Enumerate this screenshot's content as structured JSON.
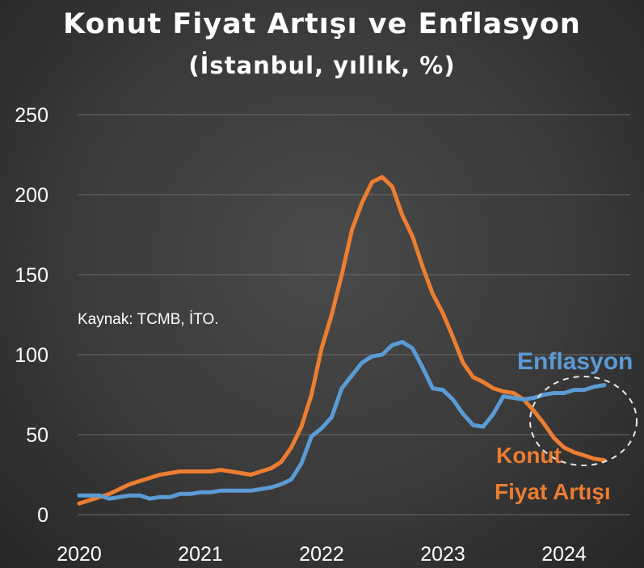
{
  "title": "Konut Fiyat Artışı ve Enflasyon",
  "subtitle": "(İstanbul, yıllık, %)",
  "colors": {
    "inflation": "#5b9bd5",
    "housing": "#ed7d31",
    "grid": "#6a6a6a",
    "text": "#ffffff"
  },
  "chart_data": {
    "type": "line",
    "title": "Konut Fiyat Artışı ve Enflasyon",
    "subtitle": "(İstanbul, yıllık, %)",
    "xlabel": "",
    "ylabel": "",
    "ylim": [
      0,
      250
    ],
    "yticks": [
      0,
      50,
      100,
      150,
      200,
      250
    ],
    "xticks": [
      "2020",
      "2021",
      "2022",
      "2023",
      "2024"
    ],
    "xlim": [
      2020,
      2024.5
    ],
    "grid": true,
    "legend": "none",
    "source": "Kaynak: TCMB, İTO.",
    "annotation": "dashed circle around 2024 crossing",
    "series": [
      {
        "name": "Enflasyon",
        "color": "#5b9bd5",
        "x": [
          2020.0,
          2020.083,
          2020.167,
          2020.25,
          2020.333,
          2020.417,
          2020.5,
          2020.583,
          2020.667,
          2020.75,
          2020.833,
          2020.917,
          2021.0,
          2021.083,
          2021.167,
          2021.25,
          2021.333,
          2021.417,
          2021.5,
          2021.583,
          2021.667,
          2021.75,
          2021.833,
          2021.917,
          2022.0,
          2022.083,
          2022.167,
          2022.25,
          2022.333,
          2022.417,
          2022.5,
          2022.583,
          2022.667,
          2022.75,
          2022.833,
          2022.917,
          2023.0,
          2023.083,
          2023.167,
          2023.25,
          2023.333,
          2023.417,
          2023.5,
          2023.583,
          2023.667,
          2023.75,
          2023.833,
          2023.917,
          2024.0,
          2024.083,
          2024.167,
          2024.25,
          2024.333
        ],
        "values": [
          12,
          12,
          12,
          10,
          11,
          12,
          12,
          10,
          11,
          11,
          13,
          13,
          14,
          14,
          15,
          15,
          15,
          15,
          16,
          17,
          19,
          22,
          32,
          49,
          54,
          61,
          79,
          87,
          95,
          99,
          100,
          106,
          108,
          104,
          92,
          79,
          78,
          72,
          63,
          56,
          55,
          63,
          74,
          73,
          72,
          73,
          75,
          76,
          76,
          78,
          78,
          80,
          81
        ]
      },
      {
        "name": "Konut Fiyat Artışı",
        "color": "#ed7d31",
        "x": [
          2020.0,
          2020.083,
          2020.167,
          2020.25,
          2020.333,
          2020.417,
          2020.5,
          2020.583,
          2020.667,
          2020.75,
          2020.833,
          2020.917,
          2021.0,
          2021.083,
          2021.167,
          2021.25,
          2021.333,
          2021.417,
          2021.5,
          2021.583,
          2021.667,
          2021.75,
          2021.833,
          2021.917,
          2022.0,
          2022.083,
          2022.167,
          2022.25,
          2022.333,
          2022.417,
          2022.5,
          2022.583,
          2022.667,
          2022.75,
          2022.833,
          2022.917,
          2023.0,
          2023.083,
          2023.167,
          2023.25,
          2023.333,
          2023.417,
          2023.5,
          2023.583,
          2023.667,
          2023.75,
          2023.833,
          2023.917,
          2024.0,
          2024.083,
          2024.167,
          2024.25,
          2024.333
        ],
        "values": [
          7,
          9,
          11,
          13,
          16,
          19,
          21,
          23,
          25,
          26,
          27,
          27,
          27,
          27,
          28,
          27,
          26,
          25,
          27,
          29,
          33,
          42,
          55,
          75,
          104,
          125,
          150,
          178,
          195,
          208,
          211,
          205,
          187,
          174,
          155,
          138,
          126,
          111,
          95,
          86,
          83,
          79,
          77,
          76,
          72,
          65,
          57,
          48,
          42,
          39,
          37,
          35,
          34
        ]
      }
    ]
  }
}
